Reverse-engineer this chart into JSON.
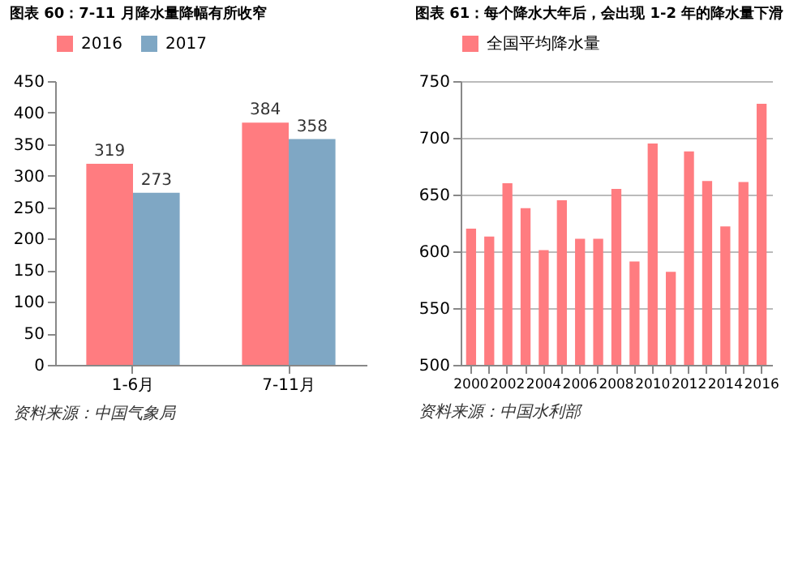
{
  "chart_data": [
    {
      "type": "bar",
      "title": "图表 60：7-11 月降水量降幅有所收窄",
      "categories": [
        "1-6月",
        "7-11月"
      ],
      "series": [
        {
          "name": "2016",
          "color": "#ff7c80",
          "values": [
            319,
            384
          ]
        },
        {
          "name": "2017",
          "color": "#7fa7c4",
          "values": [
            273,
            358
          ]
        }
      ],
      "ylim": [
        0,
        450
      ],
      "yticks": [
        0,
        50,
        100,
        150,
        200,
        250,
        300,
        350,
        400,
        450
      ],
      "data_labels": true,
      "legend": "top",
      "annotations": [
        "资料来源：中国气象局"
      ]
    },
    {
      "type": "bar",
      "title": "图表 61：每个降水大年后，会出现 1-2 年的降水量下滑",
      "categories": [
        "2000",
        null,
        "2002",
        null,
        "2004",
        null,
        "2006",
        null,
        "2008",
        null,
        "2010",
        null,
        "2012",
        null,
        "2014",
        null,
        "2016"
      ],
      "series": [
        {
          "name": "全国平均降水量",
          "color": "#ff7c80",
          "values": [
            620,
            613,
            660,
            638,
            601,
            645,
            611,
            611,
            655,
            591,
            695,
            582,
            688,
            662,
            622,
            661,
            730
          ]
        }
      ],
      "ylim": [
        500,
        750
      ],
      "yticks": [
        500,
        550,
        600,
        650,
        700,
        750
      ],
      "grid": "y",
      "legend": "top",
      "annotations": [
        "资料来源：中国水利部"
      ]
    }
  ]
}
